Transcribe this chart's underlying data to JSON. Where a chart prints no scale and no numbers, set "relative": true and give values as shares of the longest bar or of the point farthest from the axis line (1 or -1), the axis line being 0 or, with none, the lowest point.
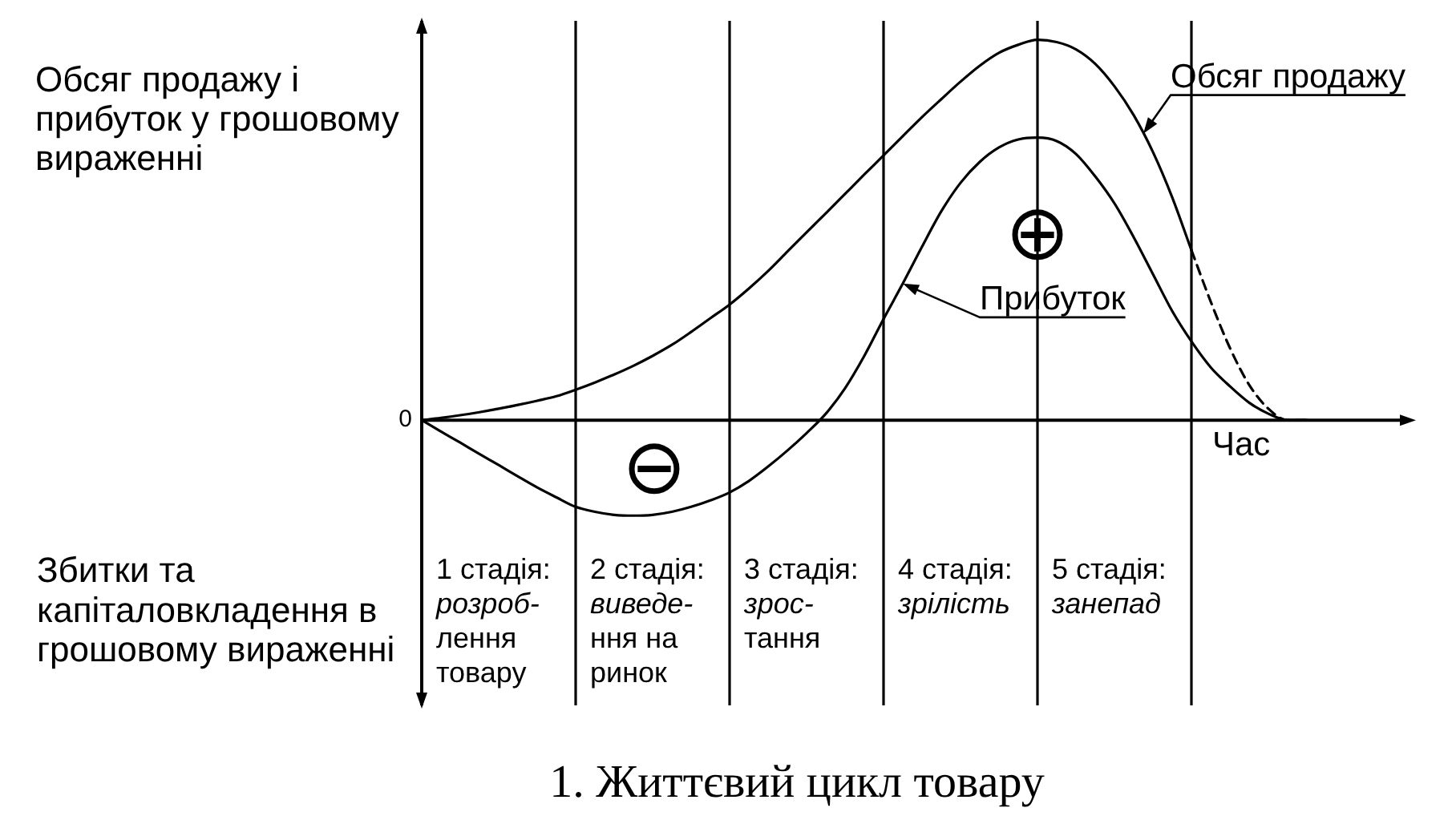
{
  "chart_data": {
    "type": "line",
    "title": "1. Життєвий цикл товару",
    "xlabel": "Час",
    "ylabel": "Обсяг продажу і\nприбуток у грошовому\nвираженні",
    "relative": true,
    "grid": "x",
    "categories": [
      null,
      null,
      null,
      null,
      null,
      null,
      null,
      null,
      null,
      null,
      null,
      null,
      null,
      null,
      null,
      null,
      null,
      null,
      null,
      null,
      null,
      null,
      null,
      null,
      null,
      null,
      null,
      null,
      null,
      null,
      null,
      null,
      null,
      null,
      null,
      null,
      null,
      null,
      null,
      null,
      null,
      null,
      null,
      null,
      null,
      null,
      null,
      null,
      null,
      null,
      null,
      null
    ],
    "series": [
      {
        "name": "Обсяг продажу",
        "color": "#000000",
        "values": [
          0,
          0.006,
          0.013,
          0.021,
          0.03,
          0.04,
          0.051,
          0.063,
          0.08,
          0.099,
          0.12,
          0.143,
          0.169,
          0.198,
          0.232,
          0.268,
          0.304,
          0.346,
          0.392,
          0.443,
          0.494,
          0.544,
          0.595,
          0.646,
          0.696,
          0.747,
          0.797,
          0.844,
          0.89,
          0.932,
          0.966,
          0.987,
          1,
          0.994,
          0.975,
          0.937,
          0.878,
          0.802,
          0.705,
          0.586,
          0.447,
          null,
          null,
          null,
          null,
          null,
          null,
          null,
          null,
          null,
          null,
          null
        ]
      },
      {
        "color": "#000000",
        "line_style": "dashed",
        "values": [
          null,
          null,
          null,
          null,
          null,
          null,
          null,
          null,
          null,
          null,
          null,
          null,
          null,
          null,
          null,
          null,
          null,
          null,
          null,
          null,
          null,
          null,
          null,
          null,
          null,
          null,
          null,
          null,
          null,
          null,
          null,
          null,
          null,
          null,
          null,
          null,
          null,
          null,
          null,
          null,
          0.447,
          0.312,
          0.19,
          0.093,
          0.03,
          0,
          0,
          null,
          null,
          null,
          null,
          null
        ]
      },
      {
        "name": "Прибуток",
        "color": "#000000",
        "values": [
          0,
          -0.03,
          -0.059,
          -0.089,
          -0.118,
          -0.148,
          -0.177,
          -0.203,
          -0.228,
          -0.241,
          -0.249,
          -0.251,
          -0.249,
          -0.241,
          -0.228,
          -0.211,
          -0.19,
          -0.16,
          -0.122,
          -0.08,
          -0.034,
          0.017,
          0.084,
          0.169,
          0.266,
          0.359,
          0.456,
          0.549,
          0.624,
          0.679,
          0.717,
          0.738,
          0.743,
          0.734,
          0.7,
          0.641,
          0.57,
          0.481,
          0.384,
          0.287,
          0.207,
          0.139,
          0.089,
          0.046,
          0.017,
          0,
          0,
          null,
          null,
          null,
          null,
          null
        ]
      }
    ],
    "annotations": [
      "0",
      "⊕",
      "⊖",
      "Збитки та\nкапіталовкладення в\nгрошовому вираженні",
      "1 стадія:\nрозроб-\nлення\nтовару",
      "2 стадія:\nвиведе-\nння на\nринок",
      "3 стадія:\nзрос-\nтання",
      "4 стадія:\nзрілість",
      "5 стадія:\nзанепад"
    ]
  }
}
